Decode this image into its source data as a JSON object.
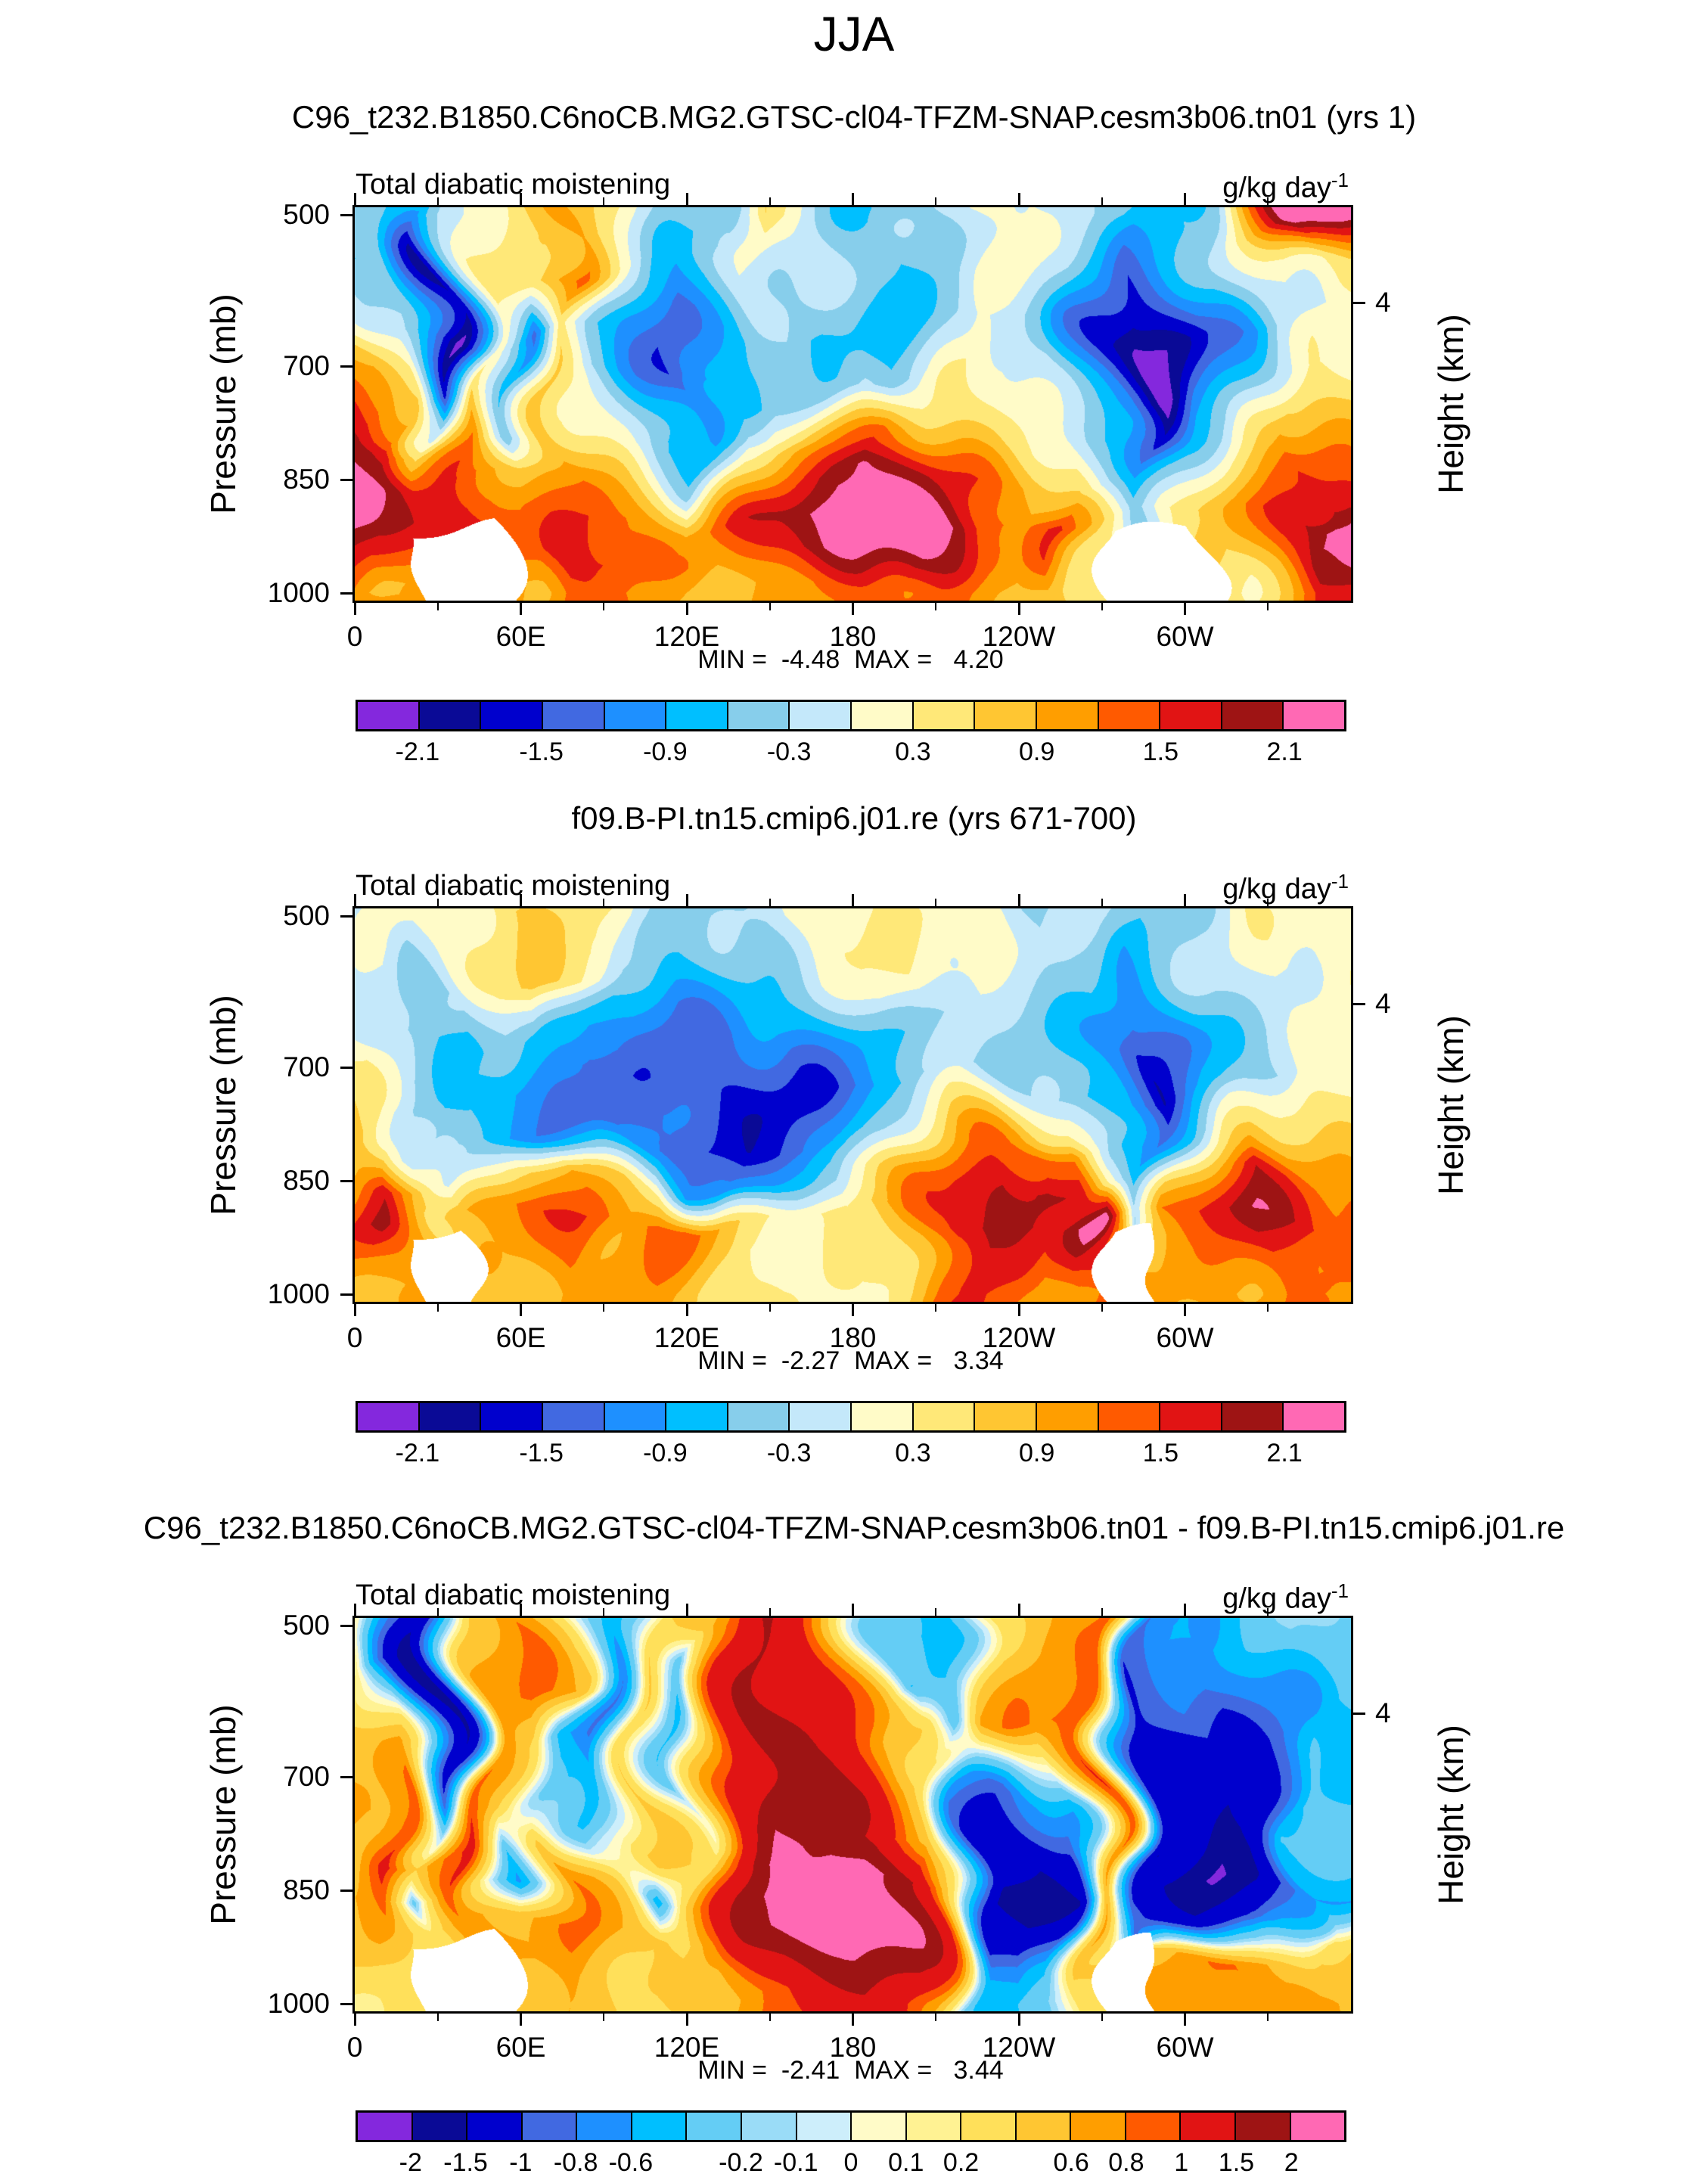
{
  "chart_data": {
    "type": "filled_contour",
    "suptitle": "JJA",
    "shared": {
      "field_label": "Total diabatic moistening",
      "units": "g/kg day",
      "units_sup": "-1",
      "ylabel": "Pressure (mb)",
      "right_axis_label": "Height (km)",
      "right_tick_label": "4",
      "right_tick_pressure": 616,
      "y_range": [
        490,
        1010
      ],
      "yticks": [
        500,
        700,
        850,
        1000
      ],
      "x_range_deg": [
        0,
        360
      ],
      "xticks": [
        {
          "lon": 0,
          "label": "0"
        },
        {
          "lon": 60,
          "label": "60E"
        },
        {
          "lon": 120,
          "label": "120E"
        },
        {
          "lon": 180,
          "label": "180"
        },
        {
          "lon": 240,
          "label": "120W"
        },
        {
          "lon": 300,
          "label": "60W"
        }
      ],
      "xminor_lons": [
        30,
        90,
        150,
        210,
        270,
        330
      ],
      "grid_lon": [
        0,
        15,
        30,
        45,
        60,
        75,
        90,
        105,
        120,
        135,
        150,
        165,
        180,
        195,
        210,
        225,
        240,
        255,
        270,
        285,
        300,
        315,
        330,
        345
      ],
      "grid_pressure": [
        500,
        575,
        650,
        725,
        800,
        850,
        900,
        950,
        1000
      ]
    },
    "levels16": [
      -2.1,
      -1.8,
      -1.5,
      -1.2,
      -0.9,
      -0.6,
      -0.3,
      0,
      0.3,
      0.6,
      0.9,
      1.2,
      1.5,
      1.8,
      2.1
    ],
    "labels16": [
      "-2.1",
      "",
      "-1.5",
      "",
      "-0.9",
      "",
      "-0.3",
      "",
      "0.3",
      "",
      "0.9",
      "",
      "1.5",
      "",
      "2.1"
    ],
    "palette16": [
      "#8428dd",
      "#0a0a96",
      "#0000cd",
      "#4169e1",
      "#1e90ff",
      "#00bfff",
      "#87ceeb",
      "#c4e8fa",
      "#fffbc8",
      "#ffe878",
      "#ffc632",
      "#ff9e00",
      "#ff5a00",
      "#e11414",
      "#9e1414",
      "#ff69b4"
    ],
    "levels18": [
      -2,
      -1.5,
      -1,
      -0.8,
      -0.6,
      -0.4,
      -0.2,
      -0.1,
      0,
      0.1,
      0.2,
      0.4,
      0.6,
      0.8,
      1,
      1.5,
      2
    ],
    "labels18": [
      "-2",
      "-1.5",
      "-1",
      "-0.8",
      "-0.6",
      "",
      "-0.2",
      "-0.1",
      "0",
      "0.1",
      "0.2",
      "",
      "0.6",
      "0.8",
      "1",
      "1.5",
      "2"
    ],
    "palette18": [
      "#8428dd",
      "#0a0a96",
      "#0000cd",
      "#4169e1",
      "#1e90ff",
      "#00bfff",
      "#64cdf5",
      "#9adcf7",
      "#cdeefb",
      "#fffbc8",
      "#fff293",
      "#ffe05a",
      "#ffc632",
      "#ff9e00",
      "#ff5a00",
      "#e11414",
      "#9e1414",
      "#ff69b4"
    ],
    "panels": [
      {
        "title": "C96_t232.B1850.C6noCB.MG2.GTSC-cl04-TFZM-SNAP.cesm3b06.tn01 (yrs 1)",
        "min": -4.48,
        "max": 4.2,
        "minmax_label": "MIN =  -4.48  MAX =   4.20",
        "levels_key": "levels16",
        "palette_key": "palette16",
        "labels_key": "labels16",
        "noise": 0.12,
        "values": [
          [
            -0.4,
            -0.5,
            -0.6,
            0.2,
            0.4,
            1.0,
            0.3,
            -0.3,
            -0.5,
            -0.4,
            0.9,
            0.2,
            -0.4,
            -0.6,
            -0.3,
            0.2,
            0.2,
            -0.2,
            -0.4,
            -0.6,
            -0.5,
            -0.4,
            1.0,
            2.4
          ],
          [
            -0.8,
            -0.6,
            -1.8,
            0.3,
            0.5,
            1.5,
            0.2,
            -0.6,
            -0.8,
            -0.5,
            0.1,
            -0.2,
            -0.5,
            -0.7,
            -0.3,
            0.2,
            0.1,
            -0.3,
            -0.8,
            -1.5,
            -1.0,
            -0.6,
            0.2,
            0.5
          ],
          [
            0.5,
            -0.3,
            -2.2,
            0.2,
            -1.2,
            0.4,
            -0.6,
            -1.0,
            -1.3,
            -0.8,
            -0.4,
            -0.6,
            -0.6,
            -0.8,
            -0.4,
            0.0,
            -0.2,
            -0.4,
            -1.2,
            -2.3,
            -1.4,
            -1.0,
            -0.3,
            0.0
          ],
          [
            1.2,
            0.8,
            -1.5,
            0.8,
            -0.8,
            0.6,
            -0.4,
            -0.9,
            -1.5,
            -0.7,
            -0.3,
            -0.5,
            -0.4,
            -0.6,
            -0.2,
            0.3,
            0.2,
            -0.2,
            -1.0,
            -2.4,
            -1.2,
            -0.8,
            -0.2,
            0.3
          ],
          [
            2.0,
            1.8,
            0.5,
            1.2,
            -0.6,
            0.8,
            0.3,
            -0.5,
            -0.8,
            0.2,
            0.5,
            0.8,
            1.0,
            1.2,
            0.8,
            0.6,
            0.4,
            0.2,
            -0.6,
            -1.8,
            -0.8,
            -0.5,
            0.3,
            1.0
          ],
          [
            2.4,
            2.0,
            1.5,
            1.5,
            0.8,
            1.0,
            0.6,
            0.3,
            -0.3,
            0.6,
            1.0,
            1.5,
            2.0,
            2.3,
            1.8,
            1.2,
            0.8,
            0.5,
            -0.3,
            -1.0,
            -0.4,
            0.2,
            0.8,
            1.6
          ],
          [
            2.3,
            1.8,
            1.9,
            1.6,
            1.2,
            1.5,
            1.3,
            1.0,
            0.8,
            1.2,
            1.6,
            2.0,
            2.5,
            2.6,
            2.2,
            1.4,
            1.0,
            1.6,
            0.5,
            -0.4,
            0.3,
            0.6,
            1.2,
            2.4
          ],
          [
            1.8,
            1.5,
            null,
            null,
            1.4,
            1.8,
            1.6,
            1.5,
            1.2,
            1.0,
            1.4,
            1.8,
            2.2,
            2.2,
            1.8,
            1.2,
            0.9,
            1.4,
            0.6,
            null,
            null,
            0.5,
            1.0,
            2.0
          ],
          [
            1.2,
            0.9,
            null,
            null,
            1.0,
            1.2,
            1.1,
            1.0,
            0.9,
            0.8,
            1.0,
            1.2,
            1.4,
            1.4,
            1.2,
            0.9,
            0.7,
            0.9,
            0.5,
            null,
            null,
            0.4,
            0.8,
            1.3
          ]
        ]
      },
      {
        "title": "f09.B-PI.tn15.cmip6.j01.re (yrs 671-700)",
        "min": -2.27,
        "max": 3.34,
        "minmax_label": "MIN =  -2.27  MAX =   3.34",
        "levels_key": "levels16",
        "palette_key": "palette16",
        "labels_key": "labels16",
        "noise": 0.12,
        "values": [
          [
            -0.3,
            0.2,
            0.2,
            0.3,
            0.6,
            0.5,
            0.2,
            -0.3,
            -0.4,
            -0.3,
            -0.2,
            0.2,
            0.3,
            0.3,
            0.2,
            0.2,
            -0.2,
            -0.3,
            -0.3,
            -0.5,
            -0.3,
            -0.2,
            0.2,
            0.2
          ],
          [
            -0.2,
            0.1,
            -0.3,
            0.2,
            0.8,
            0.4,
            -0.3,
            -0.5,
            -0.6,
            -0.5,
            -0.4,
            -0.3,
            0.2,
            0.3,
            0.2,
            0.1,
            -0.3,
            -0.4,
            -0.5,
            -1.0,
            -0.5,
            -0.3,
            0.1,
            0.2
          ],
          [
            0.2,
            -0.4,
            -0.8,
            -0.4,
            -0.5,
            -0.8,
            -1.0,
            -1.0,
            -1.2,
            -1.2,
            -1.2,
            -1.0,
            -0.8,
            -0.5,
            -0.3,
            -0.2,
            -0.3,
            -0.4,
            -0.6,
            -1.6,
            -0.8,
            -0.4,
            -0.2,
            0.1
          ],
          [
            0.4,
            -0.3,
            -0.6,
            -0.6,
            -1.0,
            -1.2,
            -1.4,
            -1.3,
            -1.4,
            -1.6,
            -1.7,
            -1.5,
            -1.2,
            -0.8,
            -0.4,
            -0.2,
            -0.3,
            -0.5,
            -0.8,
            -1.8,
            -0.9,
            -0.5,
            -0.3,
            0.2
          ],
          [
            0.8,
            0.6,
            -0.3,
            -0.5,
            -0.9,
            -1.2,
            -1.3,
            -1.2,
            -1.5,
            -1.7,
            -1.6,
            -1.4,
            -1.0,
            -0.4,
            0.4,
            1.0,
            1.4,
            1.2,
            -0.4,
            -1.4,
            -0.6,
            0.2,
            0.5,
            0.6
          ],
          [
            1.0,
            1.6,
            0.8,
            -0.2,
            0.6,
            0.9,
            0.5,
            0.3,
            -0.8,
            -1.2,
            -1.0,
            -0.8,
            -0.4,
            0.4,
            1.2,
            1.8,
            2.0,
            1.6,
            0.3,
            -0.8,
            0.4,
            1.0,
            1.8,
            1.2
          ],
          [
            1.2,
            1.8,
            0.6,
            0.9,
            1.3,
            1.5,
            1.1,
            1.3,
            1.4,
            0.9,
            0.4,
            0.3,
            0.4,
            0.9,
            1.7,
            2.0,
            1.8,
            1.6,
            2.4,
            -0.2,
            1.3,
            1.5,
            2.0,
            1.5
          ],
          [
            1.0,
            1.2,
            null,
            0.8,
            1.1,
            1.3,
            1.0,
            1.1,
            1.2,
            0.7,
            0.3,
            0.2,
            0.3,
            0.7,
            1.4,
            1.7,
            1.5,
            1.3,
            1.8,
            null,
            1.0,
            1.2,
            1.5,
            1.2
          ],
          [
            0.8,
            0.9,
            null,
            0.7,
            0.9,
            1.0,
            0.8,
            0.9,
            1.0,
            0.6,
            0.2,
            0.2,
            0.2,
            0.6,
            1.1,
            1.3,
            1.2,
            1.0,
            1.3,
            null,
            0.9,
            1.0,
            1.2,
            1.0
          ]
        ]
      },
      {
        "title": "C96_t232.B1850.C6noCB.MG2.GTSC-cl04-TFZM-SNAP.cesm3b06.tn01 - f09.B-PI.tn15.cmip6.j01.re",
        "min": -2.41,
        "max": 3.44,
        "minmax_label": "MIN =  -2.41  MAX =   3.44",
        "levels_key": "levels18",
        "palette_key": "palette18",
        "labels_key": "labels18",
        "noise": 0.06,
        "values": [
          [
            0.3,
            -0.5,
            -1.2,
            0.5,
            0.8,
            0.3,
            -0.6,
            0.5,
            0.6,
            1.0,
            1.5,
            1.2,
            0.6,
            -0.3,
            -0.5,
            0.3,
            0.5,
            0.6,
            0.8,
            -0.8,
            -0.5,
            -0.6,
            -0.4,
            -0.2
          ],
          [
            0.4,
            -0.8,
            -1.8,
            0.6,
            0.9,
            0.6,
            -0.8,
            0.4,
            -0.3,
            0.9,
            1.6,
            1.3,
            0.8,
            -0.4,
            -0.3,
            0.4,
            0.6,
            0.7,
            0.9,
            -1.0,
            -0.8,
            -0.9,
            -0.6,
            -0.3
          ],
          [
            0.5,
            0.6,
            -1.4,
            0.8,
            0.4,
            -0.5,
            -0.9,
            0.3,
            -0.5,
            1.0,
            1.8,
            1.5,
            1.0,
            0.4,
            -0.4,
            0.6,
            0.8,
            0.8,
            1.0,
            -1.2,
            -1.0,
            -1.2,
            -0.9,
            -0.5
          ],
          [
            0.6,
            1.0,
            -0.8,
            1.0,
            0.3,
            -0.4,
            -0.6,
            0.5,
            -0.3,
            1.2,
            2.0,
            1.8,
            1.4,
            0.8,
            0.3,
            -0.5,
            -0.8,
            -0.6,
            1.0,
            -1.4,
            -1.0,
            -1.4,
            -1.0,
            -0.4
          ],
          [
            0.5,
            1.2,
            0.4,
            1.1,
            -0.4,
            0.5,
            -0.4,
            0.6,
            0.3,
            1.4,
            2.2,
            2.0,
            1.8,
            1.2,
            0.6,
            -1.0,
            -1.4,
            -1.2,
            0.8,
            -1.6,
            -1.2,
            -1.8,
            -1.4,
            -0.3
          ],
          [
            0.6,
            0.8,
            -0.3,
            0.9,
            -0.6,
            0.8,
            0.4,
            -0.5,
            0.5,
            1.2,
            2.0,
            2.4,
            2.8,
            2.6,
            1.4,
            -1.6,
            -1.8,
            -1.6,
            0.5,
            -1.2,
            -1.6,
            -2.0,
            -1.6,
            -0.6
          ],
          [
            0.4,
            0.6,
            0.3,
            0.8,
            0.5,
            0.9,
            0.6,
            0.4,
            0.3,
            0.8,
            1.6,
            2.2,
            2.9,
            2.4,
            1.0,
            -1.2,
            -1.4,
            -1.0,
            0.6,
            -0.8,
            -1.2,
            -1.4,
            -1.0,
            0.4
          ],
          [
            0.3,
            0.4,
            null,
            null,
            0.6,
            0.7,
            0.5,
            0.3,
            0.4,
            0.6,
            1.2,
            1.6,
            2.0,
            1.6,
            0.8,
            -0.6,
            -0.8,
            -0.5,
            0.5,
            null,
            0.6,
            0.8,
            0.6,
            0.5
          ],
          [
            0.2,
            0.3,
            null,
            null,
            0.5,
            0.6,
            0.4,
            0.3,
            0.3,
            0.5,
            0.9,
            1.2,
            1.4,
            1.2,
            0.6,
            -0.3,
            -0.4,
            -0.2,
            0.4,
            null,
            0.7,
            0.9,
            0.7,
            0.6
          ]
        ]
      }
    ]
  }
}
